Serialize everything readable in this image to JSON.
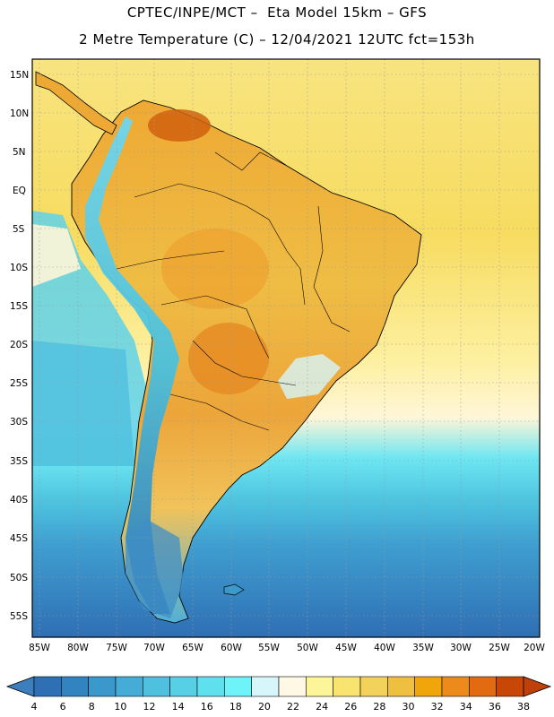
{
  "title": {
    "line1": "CPTEC/INPE/MCT –  Eta Model 15km – GFS",
    "line2": "2 Metre Temperature (C) – 12/04/2021 12UTC fct=153h"
  },
  "axes": {
    "lat_labels": [
      "15N",
      "10N",
      "5N",
      "EQ",
      "5S",
      "10S",
      "15S",
      "20S",
      "25S",
      "30S",
      "35S",
      "40S",
      "45S",
      "50S",
      "55S"
    ],
    "lon_labels": [
      "85W",
      "80W",
      "75W",
      "70W",
      "65W",
      "60W",
      "55W",
      "50W",
      "45W",
      "40W",
      "35W",
      "30W",
      "25W",
      "20W"
    ]
  },
  "colorbar": {
    "labels": [
      "4",
      "6",
      "8",
      "10",
      "12",
      "14",
      "16",
      "18",
      "20",
      "22",
      "24",
      "26",
      "28",
      "30",
      "32",
      "34",
      "36",
      "38"
    ],
    "colors": [
      "#2f6fb4",
      "#3184c0",
      "#3a98cb",
      "#45add5",
      "#4fc0de",
      "#57d0e6",
      "#5fe0ef",
      "#6df3f8",
      "#d6f6fb",
      "#fff8e4",
      "#fdf59a",
      "#f8e46f",
      "#f2d25a",
      "#efc03f",
      "#f0a60a",
      "#ec8a1c",
      "#e26a10",
      "#c84606"
    ],
    "low_color": "#3d7fbd",
    "high_color": "#c0400a"
  }
}
